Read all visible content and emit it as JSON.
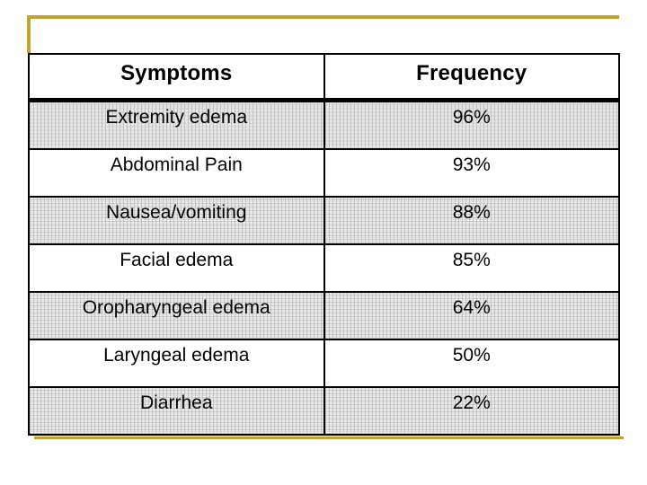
{
  "slide": {
    "background_color": "#ffffff",
    "accent_color": "#c1a32f",
    "border_color": "#000000"
  },
  "table": {
    "headers": [
      "Symptoms",
      "Frequency"
    ],
    "rows": [
      {
        "symptom": "Extremity edema",
        "frequency": "96%",
        "shaded": true
      },
      {
        "symptom": "Abdominal Pain",
        "frequency": "93%",
        "shaded": false
      },
      {
        "symptom": "Nausea/vomiting",
        "frequency": "88%",
        "shaded": true
      },
      {
        "symptom": "Facial edema",
        "frequency": "85%",
        "shaded": false
      },
      {
        "symptom": "Oropharyngeal edema",
        "frequency": "64%",
        "shaded": true
      },
      {
        "symptom": "Laryngeal edema",
        "frequency": "50%",
        "shaded": false
      },
      {
        "symptom": "Diarrhea",
        "frequency": "22%",
        "shaded": true
      }
    ]
  },
  "chart_data": {
    "type": "table",
    "title": "",
    "columns": [
      "Symptoms",
      "Frequency"
    ],
    "categories": [
      "Extremity edema",
      "Abdominal Pain",
      "Nausea/vomiting",
      "Facial edema",
      "Oropharyngeal edema",
      "Laryngeal edema",
      "Diarrhea"
    ],
    "values": [
      96,
      93,
      88,
      85,
      64,
      50,
      22
    ],
    "value_unit": "%"
  }
}
